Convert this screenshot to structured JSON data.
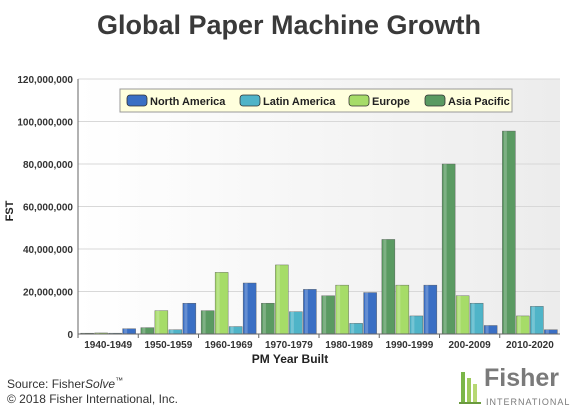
{
  "footer": {
    "source_prefix": "Source: Fisher",
    "source_italic": "Solve",
    "source_tm": "™",
    "copyright": "© 2018 Fisher International, Inc."
  },
  "brand": {
    "name": "Fisher",
    "subtitle": "INTERNATIONAL"
  },
  "chart_data": {
    "type": "bar",
    "title": "Global Paper Machine Growth",
    "xlabel": "PM Year Built",
    "ylabel": "FST",
    "ylim": [
      0,
      120000000
    ],
    "yticks": [
      0,
      20000000,
      40000000,
      60000000,
      80000000,
      100000000,
      120000000
    ],
    "ytick_labels": [
      "0",
      "20,000,000",
      "40,000,000",
      "60,000,000",
      "80,000,000",
      "100,000,000",
      "120,000,000"
    ],
    "grid": true,
    "legend_position": "top-center",
    "categories": [
      "1940-1949",
      "1950-1959",
      "1960-1969",
      "1970-1979",
      "1980-1989",
      "1990-1999",
      "200-2009",
      "2010-2020"
    ],
    "series": [
      {
        "name": "Asia Pacific",
        "color": "#5a9a62",
        "values": [
          400000,
          3000000,
          11000000,
          14500000,
          18000000,
          44500000,
          80000000,
          95500000
        ]
      },
      {
        "name": "Europe",
        "color": "#a6dc68",
        "values": [
          500000,
          11000000,
          29000000,
          32500000,
          23000000,
          23000000,
          18000000,
          8500000
        ]
      },
      {
        "name": "Latin America",
        "color": "#4fb4c8",
        "values": [
          400000,
          2000000,
          3500000,
          10500000,
          5000000,
          8500000,
          14500000,
          13000000
        ]
      },
      {
        "name": "North America",
        "color": "#3a6fc4",
        "values": [
          2500000,
          14500000,
          24000000,
          21000000,
          19500000,
          23000000,
          4000000,
          2000000
        ]
      }
    ],
    "legend_order": [
      "North America",
      "Latin America",
      "Europe",
      "Asia Pacific"
    ]
  }
}
